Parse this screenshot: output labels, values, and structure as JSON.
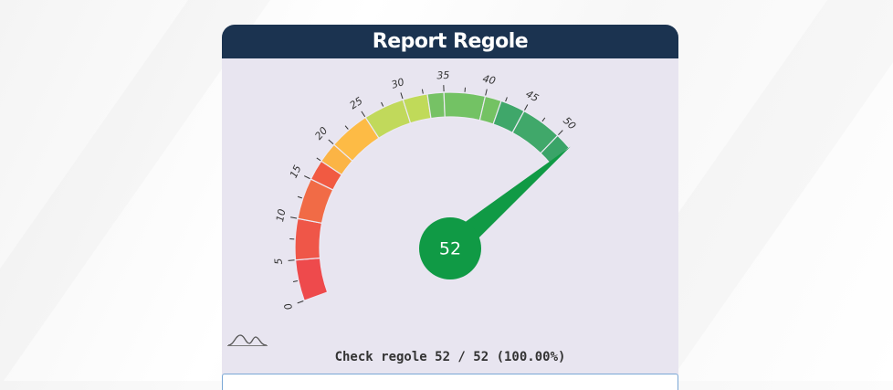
{
  "card": {
    "title": "Report Regole",
    "summary": "Check regole 52 / 52 (100.00%)"
  },
  "gauge": {
    "value": 52,
    "value_label": "52",
    "min": 0,
    "max": 52,
    "needle_color": "#109a45",
    "tick_labels": [
      "0",
      "5",
      "10",
      "15",
      "20",
      "25",
      "30",
      "35",
      "40",
      "45",
      "50"
    ],
    "bands": [
      {
        "from": 0,
        "to": 5,
        "color": "#ee4a4c"
      },
      {
        "from": 5,
        "to": 10,
        "color": "#ef5648"
      },
      {
        "from": 10,
        "to": 15,
        "color": "#f16b46"
      },
      {
        "from": 15,
        "to": 17.5,
        "color": "#f15a42"
      },
      {
        "from": 17.5,
        "to": 20,
        "color": "#fbb445"
      },
      {
        "from": 20,
        "to": 25,
        "color": "#fdbb45"
      },
      {
        "from": 25,
        "to": 30,
        "color": "#c1d95b"
      },
      {
        "from": 30,
        "to": 33,
        "color": "#c0da59"
      },
      {
        "from": 33,
        "to": 35,
        "color": "#76c265"
      },
      {
        "from": 35,
        "to": 40,
        "color": "#73c264"
      },
      {
        "from": 40,
        "to": 42,
        "color": "#74c263"
      },
      {
        "from": 42,
        "to": 45,
        "color": "#3fa76a"
      },
      {
        "from": 45,
        "to": 50,
        "color": "#40a86a"
      },
      {
        "from": 50,
        "to": 52,
        "color": "#3aa468"
      }
    ]
  },
  "icons": {
    "logo": "chart-logo-icon"
  }
}
